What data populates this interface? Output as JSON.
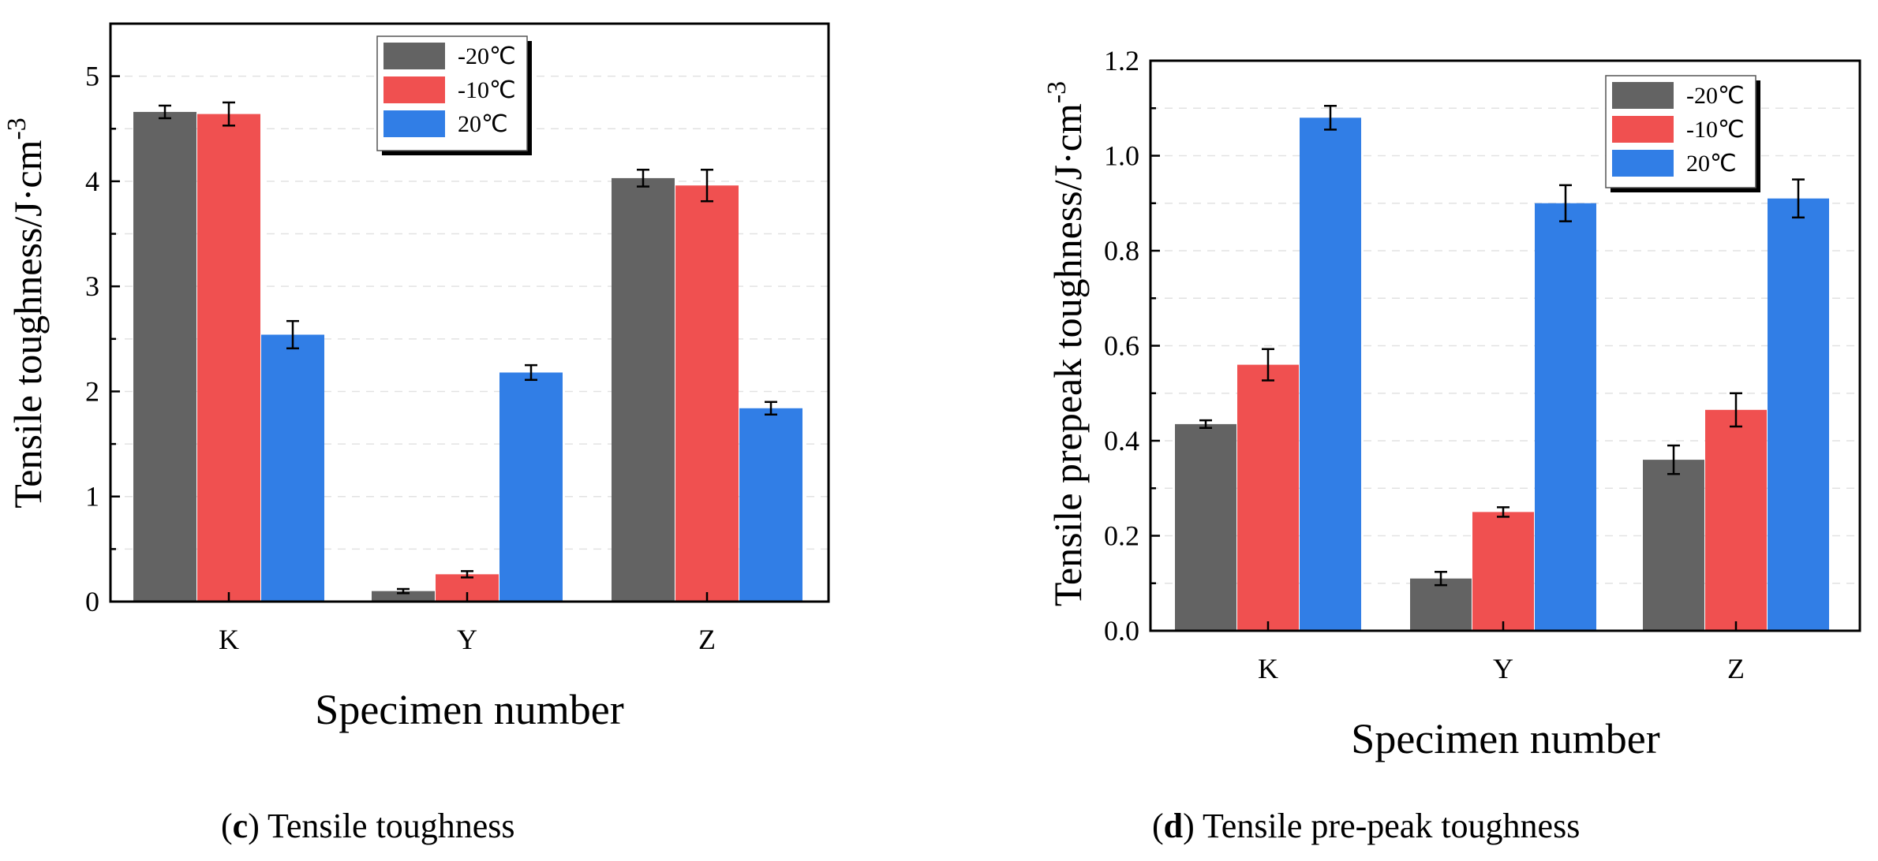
{
  "colors": {
    "s1": "#636363",
    "s2": "#f05050",
    "s3": "#317ee6"
  },
  "legend": [
    "-20℃",
    "-10℃",
    "20℃"
  ],
  "captions": [
    {
      "letter": "c",
      "text": ") Tensile toughness"
    },
    {
      "letter": "d",
      "text": ") Tensile pre-peak toughness"
    }
  ],
  "chart_data": [
    {
      "type": "bar",
      "title": "(c) Tensile toughness",
      "xlabel": "Specimen number",
      "ylabel": "Tensile toughness/J·cm",
      "ylabel_superscript": "-3",
      "categories": [
        "K",
        "Y",
        "Z"
      ],
      "ylim": [
        0,
        5.5
      ],
      "yticks": [
        "0",
        "1",
        "2",
        "3",
        "4",
        "5"
      ],
      "grid": true,
      "legend_position": "top-center",
      "series": [
        {
          "name": "-20℃",
          "values": [
            4.66,
            0.1,
            4.03
          ],
          "errors": [
            0.06,
            0.02,
            0.08
          ]
        },
        {
          "name": "-10℃",
          "values": [
            4.64,
            0.26,
            3.96
          ],
          "errors": [
            0.11,
            0.03,
            0.15
          ]
        },
        {
          "name": "20℃",
          "values": [
            2.54,
            2.18,
            1.84
          ],
          "errors": [
            0.13,
            0.07,
            0.06
          ]
        }
      ]
    },
    {
      "type": "bar",
      "title": "(d) Tensile pre-peak toughness",
      "xlabel": "Specimen number",
      "ylabel": "Tensile prepeak toughness/J·cm",
      "ylabel_superscript": "-3",
      "categories": [
        "K",
        "Y",
        "Z"
      ],
      "ylim": [
        0,
        1.2
      ],
      "yticks": [
        "0.0",
        "0.2",
        "0.4",
        "0.6",
        "0.8",
        "1.0",
        "1.2"
      ],
      "grid": true,
      "legend_position": "top-right",
      "series": [
        {
          "name": "-20℃",
          "values": [
            0.435,
            0.11,
            0.36
          ],
          "errors": [
            0.008,
            0.014,
            0.03
          ]
        },
        {
          "name": "-10℃",
          "values": [
            0.56,
            0.25,
            0.465
          ],
          "errors": [
            0.033,
            0.01,
            0.035
          ]
        },
        {
          "name": "20℃",
          "values": [
            1.08,
            0.9,
            0.91
          ],
          "errors": [
            0.025,
            0.038,
            0.04
          ]
        }
      ]
    }
  ]
}
